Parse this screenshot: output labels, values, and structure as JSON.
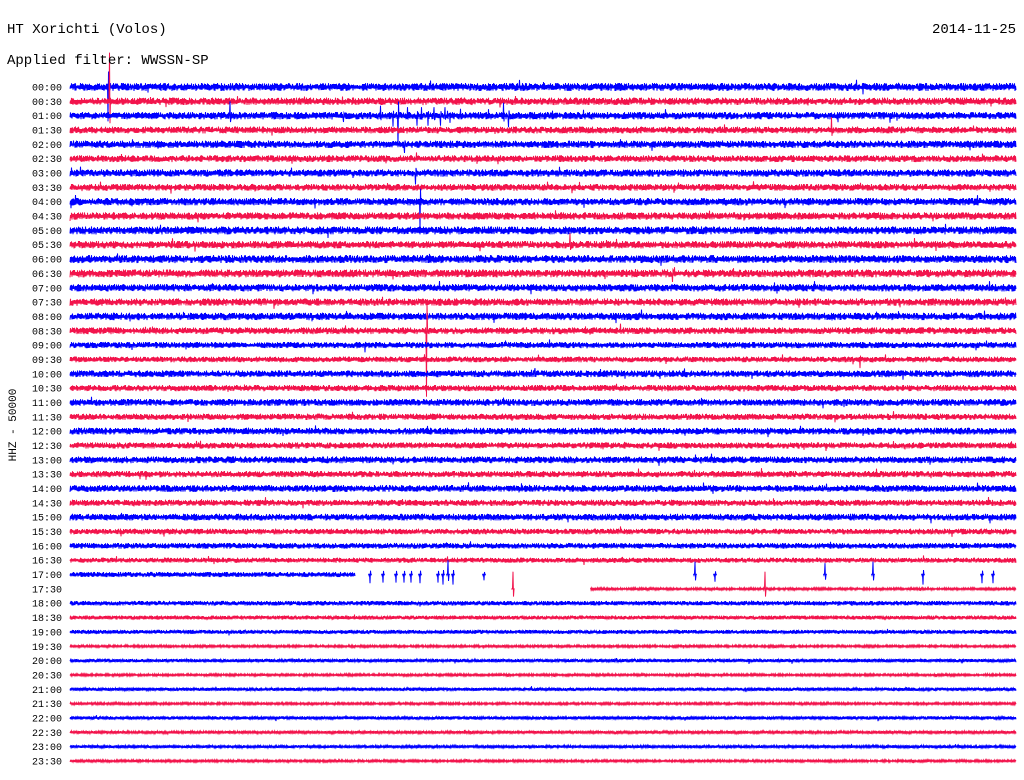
{
  "chart_data": {
    "type": "line",
    "title": "HT Xorichti (Volos)",
    "date": "2014-11-25",
    "filter": "Applied filter: WWSSN-SP",
    "ylabel": "HHZ - 50000",
    "minutes_per_row": 30,
    "trace_colors": [
      "#0000ff",
      "#f2144c"
    ],
    "rows": [
      {
        "label": "00:00",
        "noise_amp": 14000,
        "events": [
          {
            "minute": 1.05,
            "amp": 35000,
            "dur": 0.4
          },
          {
            "minute": 1.2,
            "amp": -120000
          }
        ]
      },
      {
        "label": "00:30",
        "noise_amp": 13000,
        "events": [
          {
            "minute": 0.95,
            "amp": 50000,
            "dur": 0.55
          },
          {
            "minute": 1.25,
            "amp": 170000
          }
        ]
      },
      {
        "label": "01:00",
        "noise_amp": 13000,
        "events": [
          {
            "minute": 5.07,
            "amp": 50000
          },
          {
            "minute": 8.68,
            "amp": -22000
          },
          {
            "minute": 9.85,
            "amp": 35000
          },
          {
            "minute": 10.25,
            "amp": -38000
          },
          {
            "minute": 10.4,
            "amp": -110000
          },
          {
            "minute": 10.7,
            "amp": 30000
          },
          {
            "minute": 11.0,
            "amp": -35000
          },
          {
            "minute": 11.15,
            "amp": 30000
          },
          {
            "minute": 11.35,
            "amp": -35000
          },
          {
            "minute": 11.55,
            "amp": 30000
          },
          {
            "minute": 11.75,
            "amp": -35000
          },
          {
            "minute": 11.9,
            "amp": 30000
          },
          {
            "minute": 12.05,
            "amp": -25000
          },
          {
            "minute": 13.75,
            "amp": 45000
          },
          {
            "minute": 13.9,
            "amp": -40000
          }
        ]
      },
      {
        "label": "01:30",
        "noise_amp": 12000,
        "events": [
          {
            "minute": 24.1,
            "amp": 30000,
            "dur": 0.35
          },
          {
            "minute": 24.15,
            "amp": 45000
          }
        ]
      },
      {
        "label": "02:00",
        "noise_amp": 13000,
        "events": [
          {
            "minute": 10.6,
            "amp": -30000
          }
        ]
      },
      {
        "label": "02:30",
        "noise_amp": 12000,
        "events": [
          {
            "minute": 27.8,
            "amp": 18000,
            "dur": 0.3
          }
        ]
      },
      {
        "label": "03:00",
        "noise_amp": 13000,
        "events": [
          {
            "minute": 10.95,
            "amp": -40000
          }
        ]
      },
      {
        "label": "03:30",
        "noise_amp": 12000,
        "events": [
          {
            "minute": 13.16,
            "amp": 28000,
            "dur": 0.45
          },
          {
            "minute": 16.4,
            "amp": 15000,
            "dur": 0.3
          }
        ]
      },
      {
        "label": "04:00",
        "noise_amp": 13000,
        "events": [
          {
            "minute": 10.95,
            "amp": 140000,
            "dur": 0.35
          },
          {
            "minute": 11.1,
            "amp": -100000
          }
        ]
      },
      {
        "label": "04:30",
        "noise_amp": 13000,
        "events": [
          {
            "minute": 13.75,
            "amp": 30000,
            "dur": 0.9
          },
          {
            "minute": 17.1,
            "amp": 30000,
            "dur": 0.5
          }
        ]
      },
      {
        "label": "05:00",
        "noise_amp": 14000,
        "events": [
          {
            "minute": 0.85,
            "amp": 55000,
            "dur": 0.45
          },
          {
            "minute": 5.15,
            "amp": 45000,
            "dur": 0.5
          },
          {
            "minute": 9.98,
            "amp": 45000,
            "dur": 0.35
          }
        ]
      },
      {
        "label": "05:30",
        "noise_amp": 13000,
        "events": [
          {
            "minute": 15.85,
            "amp": 40000
          },
          {
            "minute": 15.9,
            "amp": 18000,
            "dur": 0.4
          }
        ]
      },
      {
        "label": "06:00",
        "noise_amp": 14000,
        "events": [
          {
            "minute": 1.78,
            "amp": 30000,
            "dur": 0.35
          },
          {
            "minute": 16.0,
            "amp": 25000,
            "dur": 0.9
          }
        ]
      },
      {
        "label": "06:30",
        "noise_amp": 14000,
        "events": [
          {
            "minute": 10.98,
            "amp": 220000,
            "dur": 0.5
          },
          {
            "minute": 19.1,
            "amp": -30000
          }
        ]
      },
      {
        "label": "07:00",
        "noise_amp": 13000,
        "events": [
          {
            "minute": 11.1,
            "amp": 40000,
            "dur": 0.5
          },
          {
            "minute": 17.45,
            "amp": 30000,
            "dur": 0.45
          }
        ]
      },
      {
        "label": "07:30",
        "noise_amp": 13000,
        "events": [
          {
            "minute": 11.15,
            "amp": 60000,
            "dur": 0.6
          },
          {
            "minute": 21.1,
            "amp": 22000,
            "dur": 0.7
          },
          {
            "minute": 25.85,
            "amp": 15000,
            "dur": 0.4
          }
        ]
      },
      {
        "label": "08:00",
        "noise_amp": 13000,
        "events": [
          {
            "minute": 8.25,
            "amp": 28000,
            "dur": 0.35
          },
          {
            "minute": 11.2,
            "amp": 45000,
            "dur": 0.5
          }
        ]
      },
      {
        "label": "08:30",
        "noise_amp": 12000,
        "events": [
          {
            "minute": 11.1,
            "amp": 60000,
            "dur": 0.5
          },
          {
            "minute": 11.3,
            "amp": -230000
          },
          {
            "minute": 17.45,
            "amp": 25000
          },
          {
            "minute": 24.9,
            "amp": 25000,
            "dur": 0.35
          }
        ]
      },
      {
        "label": "09:00",
        "noise_amp": 11000,
        "events": [
          {
            "minute": 9.35,
            "amp": -25000
          },
          {
            "minute": 17.45,
            "amp": 25000,
            "dur": 0.4
          }
        ]
      },
      {
        "label": "09:30",
        "noise_amp": 10000,
        "events": [
          {
            "minute": 25.05,
            "amp": -30000
          }
        ]
      },
      {
        "label": "10:00",
        "noise_amp": 12000,
        "events": [
          {
            "minute": 9.2,
            "amp": 28000,
            "dur": 0.45
          },
          {
            "minute": 14.75,
            "amp": 20000
          }
        ]
      },
      {
        "label": "10:30",
        "noise_amp": 11000,
        "events": [
          {
            "minute": 5.4,
            "amp": 22000,
            "dur": 0.3
          },
          {
            "minute": 24.74,
            "amp": 55000,
            "dur": 0.45
          }
        ]
      },
      {
        "label": "11:00",
        "noise_amp": 12000,
        "events": [
          {
            "minute": 5.5,
            "amp": 38000,
            "dur": 0.55
          }
        ]
      },
      {
        "label": "11:30",
        "noise_amp": 11000,
        "events": [
          {
            "minute": 14.0,
            "amp": 28000,
            "dur": 0.45
          },
          {
            "minute": 24.7,
            "amp": 20000,
            "dur": 0.3
          }
        ]
      },
      {
        "label": "12:00",
        "noise_amp": 12000,
        "events": [
          {
            "minute": 15.7,
            "amp": 25000,
            "dur": 0.55
          },
          {
            "minute": 25.05,
            "amp": 42000,
            "dur": 0.9
          }
        ]
      },
      {
        "label": "12:30",
        "noise_amp": 11000,
        "events": []
      },
      {
        "label": "13:00",
        "noise_amp": 12000,
        "events": [
          {
            "minute": 25.47,
            "amp": 28000,
            "dur": 0.35
          }
        ]
      },
      {
        "label": "13:30",
        "noise_amp": 11000,
        "events": [
          {
            "minute": 15.3,
            "amp": 20000,
            "dur": 0.3
          }
        ]
      },
      {
        "label": "14:00",
        "noise_amp": 12000,
        "events": [
          {
            "minute": 4.5,
            "amp": 16000,
            "dur": 0.3
          }
        ]
      },
      {
        "label": "14:30",
        "noise_amp": 11000,
        "events": [
          {
            "minute": 6.2,
            "amp": 20000
          },
          {
            "minute": 24.67,
            "amp": 25000,
            "dur": 0.4
          }
        ]
      },
      {
        "label": "15:00",
        "noise_amp": 12000,
        "events": [
          {
            "minute": 8.97,
            "amp": 25000,
            "dur": 0.4
          }
        ]
      },
      {
        "label": "15:30",
        "noise_amp": 10000,
        "events": []
      },
      {
        "label": "16:00",
        "noise_amp": 10000,
        "events": [
          {
            "minute": 16.17,
            "amp": 15000,
            "dur": 0.3
          },
          {
            "minute": 19.7,
            "amp": 15000,
            "dur": 0.3
          }
        ]
      },
      {
        "label": "16:30",
        "noise_amp": 9000,
        "events": []
      },
      {
        "label": "17:00",
        "noise_amp": 9000,
        "data_end": 9.04,
        "events": [
          {
            "minute": 9.51,
            "amp": -30000
          },
          {
            "minute": 9.93,
            "amp": -28000
          },
          {
            "minute": 10.34,
            "amp": -28000
          },
          {
            "minute": 10.59,
            "amp": -28000
          },
          {
            "minute": 10.81,
            "amp": -28000
          },
          {
            "minute": 11.1,
            "amp": -30000
          },
          {
            "minute": 11.67,
            "amp": -28000
          },
          {
            "minute": 11.83,
            "amp": -35000
          },
          {
            "minute": 11.99,
            "amp": 50000
          },
          {
            "minute": 12.15,
            "amp": -35000
          },
          {
            "minute": 13.13,
            "amp": -20000
          },
          {
            "minute": 19.82,
            "amp": 45000
          },
          {
            "minute": 20.46,
            "amp": -25000
          },
          {
            "minute": 23.95,
            "amp": 40000
          },
          {
            "minute": 25.47,
            "amp": 45000
          },
          {
            "minute": 27.05,
            "amp": -35000
          },
          {
            "minute": 28.92,
            "amp": -30000
          },
          {
            "minute": 29.27,
            "amp": -30000
          }
        ]
      },
      {
        "label": "17:30",
        "noise_amp": 4000,
        "data_start": 16.5,
        "events": [
          {
            "minute": 14.05,
            "amp": 60000
          },
          {
            "minute": 22.04,
            "amp": 60000
          }
        ]
      },
      {
        "label": "18:00",
        "noise_amp": 8000,
        "events": [
          {
            "minute": 11.48,
            "amp": 35000,
            "dur": 0.3
          },
          {
            "minute": 13.3,
            "amp": 12000,
            "dur": 0.2
          }
        ]
      },
      {
        "label": "18:30",
        "noise_amp": 7000,
        "events": [
          {
            "minute": 24.67,
            "amp": 16000,
            "dur": 0.35
          }
        ]
      },
      {
        "label": "19:00",
        "noise_amp": 7000,
        "events": [
          {
            "minute": 15.07,
            "amp": 9000,
            "dur": 0.3
          }
        ]
      },
      {
        "label": "19:30",
        "noise_amp": 4000,
        "events": []
      },
      {
        "label": "20:00",
        "noise_amp": 6000,
        "events": [
          {
            "minute": 2.06,
            "amp": 15000,
            "dur": 0.3
          }
        ]
      },
      {
        "label": "20:30",
        "noise_amp": 4000,
        "events": []
      },
      {
        "label": "21:00",
        "noise_amp": 6000,
        "events": [
          {
            "minute": 20.14,
            "amp": 20000,
            "dur": 0.45
          }
        ]
      },
      {
        "label": "21:30",
        "noise_amp": 4000,
        "events": [
          {
            "minute": 16.95,
            "amp": 9000,
            "dur": 0.2
          },
          {
            "minute": 21.57,
            "amp": 42000,
            "dur": 0.5
          }
        ]
      },
      {
        "label": "22:00",
        "noise_amp": 6000,
        "events": [
          {
            "minute": 26.9,
            "amp": 50000,
            "dur": 0.55
          }
        ]
      },
      {
        "label": "22:30",
        "noise_amp": 5000,
        "events": [
          {
            "minute": 12.9,
            "amp": 10000,
            "dur": 0.3
          },
          {
            "minute": 26.9,
            "amp": 55000,
            "dur": 0.8
          }
        ]
      },
      {
        "label": "23:00",
        "noise_amp": 5000,
        "events": [
          {
            "minute": 25.05,
            "amp": 8000,
            "dur": 0.3
          }
        ]
      },
      {
        "label": "23:30",
        "noise_amp": 4000,
        "events": [
          {
            "minute": 26.2,
            "amp": 30000,
            "dur": 0.5
          }
        ]
      }
    ]
  }
}
